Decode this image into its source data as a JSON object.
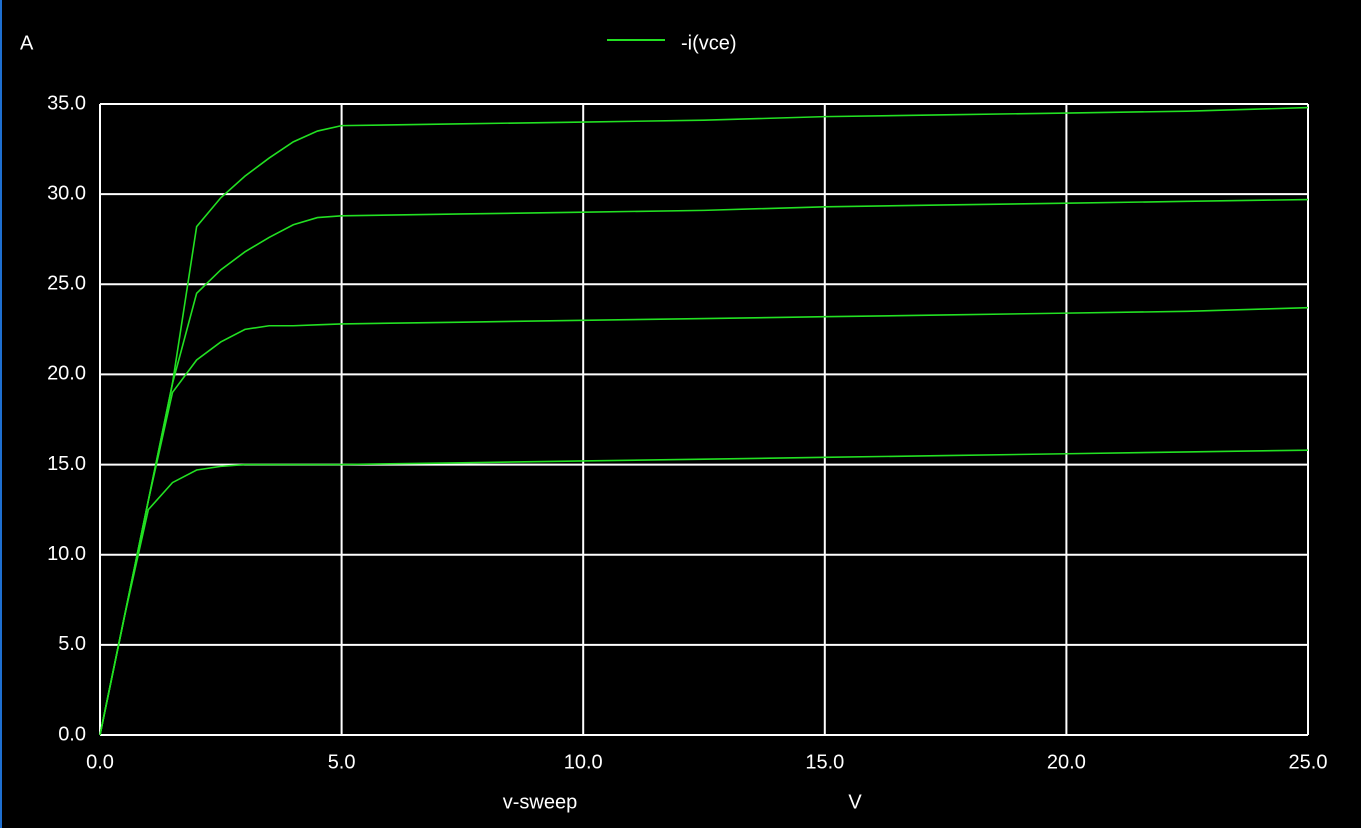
{
  "chart_data": {
    "type": "line",
    "y_unit": "A",
    "x_label": "v-sweep",
    "x_unit": "V",
    "legend_label": "-i(vce)",
    "legend_position": "top",
    "color": "#22e022",
    "grid": true,
    "xlim": [
      0,
      25
    ],
    "ylim": [
      0,
      35
    ],
    "xticks": [
      {
        "value": 0,
        "label": "0.0"
      },
      {
        "value": 5,
        "label": "5.0"
      },
      {
        "value": 10,
        "label": "10.0"
      },
      {
        "value": 15,
        "label": "15.0"
      },
      {
        "value": 20,
        "label": "20.0"
      },
      {
        "value": 25,
        "label": "25.0"
      }
    ],
    "yticks": [
      {
        "value": 0,
        "label": "0.0"
      },
      {
        "value": 5,
        "label": "5.0"
      },
      {
        "value": 10,
        "label": "10.0"
      },
      {
        "value": 15,
        "label": "15.0"
      },
      {
        "value": 20,
        "label": "20.0"
      },
      {
        "value": 25,
        "label": "25.0"
      },
      {
        "value": 30,
        "label": "30.0"
      },
      {
        "value": 35,
        "label": "35.0"
      }
    ],
    "x": [
      0,
      0.5,
      1,
      1.5,
      2,
      2.5,
      3,
      3.5,
      4,
      4.5,
      5,
      7.5,
      10,
      12.5,
      15,
      17.5,
      20,
      22.5,
      25
    ],
    "series": [
      {
        "values": [
          0,
          6.5,
          12.5,
          14.0,
          14.7,
          14.9,
          15.0,
          15.0,
          15.0,
          15.0,
          15.0,
          15.1,
          15.2,
          15.3,
          15.4,
          15.5,
          15.6,
          15.7,
          15.8
        ]
      },
      {
        "values": [
          0,
          6.5,
          13.0,
          19.0,
          20.8,
          21.8,
          22.5,
          22.7,
          22.7,
          22.75,
          22.8,
          22.9,
          23.0,
          23.1,
          23.2,
          23.3,
          23.4,
          23.5,
          23.7
        ]
      },
      {
        "values": [
          0,
          6.5,
          13.0,
          19.5,
          24.5,
          25.8,
          26.8,
          27.6,
          28.3,
          28.7,
          28.8,
          28.9,
          29.0,
          29.1,
          29.3,
          29.4,
          29.5,
          29.6,
          29.7
        ]
      },
      {
        "values": [
          0,
          6.5,
          13.0,
          19.5,
          28.2,
          29.8,
          31.0,
          32.0,
          32.9,
          33.5,
          33.8,
          33.9,
          34.0,
          34.1,
          34.3,
          34.4,
          34.5,
          34.6,
          34.8
        ]
      }
    ]
  }
}
